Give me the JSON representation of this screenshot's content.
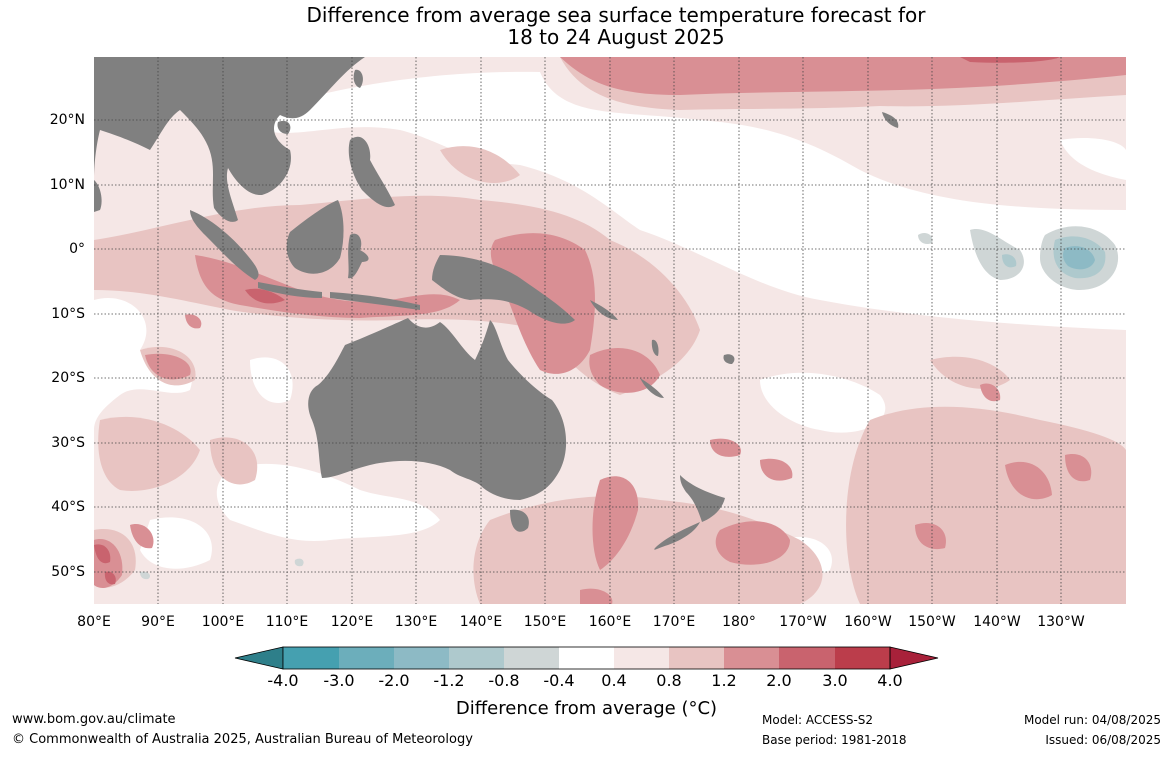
{
  "title": {
    "line1": "Difference from average sea surface temperature forecast for",
    "line2": "18 to 24 August 2025"
  },
  "map": {
    "lat_labels": [
      "20°N",
      "10°N",
      "0°",
      "10°S",
      "20°S",
      "30°S",
      "40°S",
      "50°S"
    ],
    "lon_labels": [
      "80°E",
      "90°E",
      "100°E",
      "110°E",
      "120°E",
      "130°E",
      "140°E",
      "150°E",
      "160°E",
      "170°E",
      "180°",
      "170°W",
      "160°W",
      "150°W",
      "140°W",
      "130°W"
    ],
    "land_color": "#808080",
    "gridlines": true,
    "extent": {
      "lon": [
        "80°E",
        "120°W"
      ],
      "lat": [
        "55°S",
        "30°N"
      ]
    }
  },
  "colorbar": {
    "title": "Difference from average (°C)",
    "tick_labels": [
      "-4.0",
      "-3.0",
      "-2.0",
      "-1.2",
      "-0.8",
      "-0.4",
      "0.4",
      "0.8",
      "1.2",
      "2.0",
      "3.0",
      "4.0"
    ],
    "colors": {
      "extend_low": "#2e7f8a",
      "bins": [
        "#45a0b0",
        "#6caebb",
        "#8dbac5",
        "#aec9cd",
        "#cfd6d6",
        "#ffffff",
        "#f5e7e6",
        "#e8c4c2",
        "#d98f94",
        "#c9636e",
        "#bb3d4b"
      ],
      "extend_high": "#a8213a"
    }
  },
  "footer": {
    "url": "www.bom.gov.au/climate",
    "copyright": "© Commonwealth of Australia 2025, Australian Bureau of Meteorology",
    "model": "Model: ACCESS-S2",
    "base_period": "Base period: 1981-2018",
    "model_run": "Model run: 04/08/2025",
    "issued": "Issued: 06/08/2025"
  }
}
